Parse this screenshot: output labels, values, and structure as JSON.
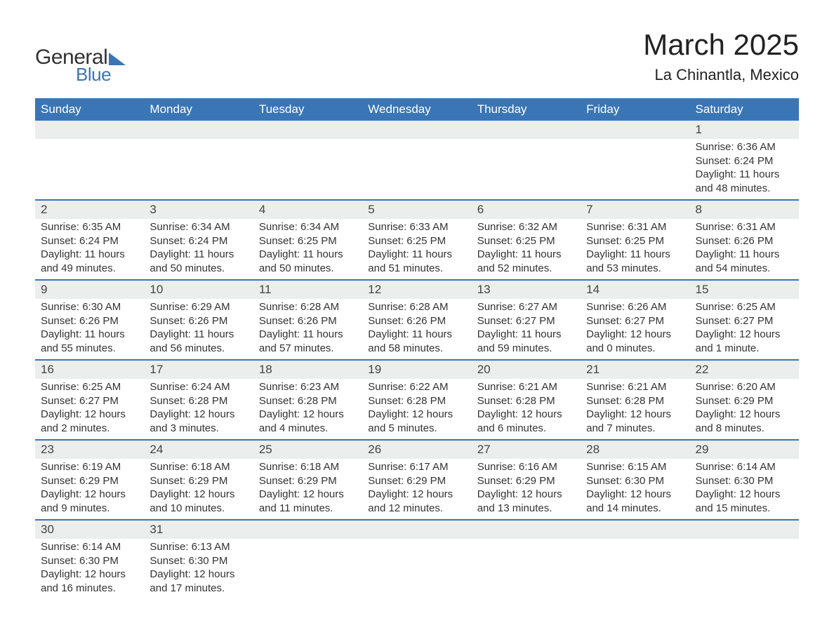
{
  "logo": {
    "text_general": "General",
    "text_blue": "Blue",
    "shape_color": "#3a76b5",
    "general_color": "#333333",
    "blue_color": "#3a76b5"
  },
  "title": "March 2025",
  "location": "La Chinantla, Mexico",
  "colors": {
    "header_bg": "#3a76b5",
    "header_text": "#ffffff",
    "daynum_bg": "#eceded",
    "text": "#333333",
    "border": "#3a76b5",
    "page_bg": "#ffffff"
  },
  "typography": {
    "title_fontsize": 42,
    "location_fontsize": 22,
    "header_fontsize": 17,
    "daynum_fontsize": 17,
    "content_fontsize": 15,
    "font_family": "Arial"
  },
  "day_headers": [
    "Sunday",
    "Monday",
    "Tuesday",
    "Wednesday",
    "Thursday",
    "Friday",
    "Saturday"
  ],
  "weeks": [
    [
      {
        "num": "",
        "sunrise": "",
        "sunset": "",
        "daylight": ""
      },
      {
        "num": "",
        "sunrise": "",
        "sunset": "",
        "daylight": ""
      },
      {
        "num": "",
        "sunrise": "",
        "sunset": "",
        "daylight": ""
      },
      {
        "num": "",
        "sunrise": "",
        "sunset": "",
        "daylight": ""
      },
      {
        "num": "",
        "sunrise": "",
        "sunset": "",
        "daylight": ""
      },
      {
        "num": "",
        "sunrise": "",
        "sunset": "",
        "daylight": ""
      },
      {
        "num": "1",
        "sunrise": "Sunrise: 6:36 AM",
        "sunset": "Sunset: 6:24 PM",
        "daylight": "Daylight: 11 hours and 48 minutes."
      }
    ],
    [
      {
        "num": "2",
        "sunrise": "Sunrise: 6:35 AM",
        "sunset": "Sunset: 6:24 PM",
        "daylight": "Daylight: 11 hours and 49 minutes."
      },
      {
        "num": "3",
        "sunrise": "Sunrise: 6:34 AM",
        "sunset": "Sunset: 6:24 PM",
        "daylight": "Daylight: 11 hours and 50 minutes."
      },
      {
        "num": "4",
        "sunrise": "Sunrise: 6:34 AM",
        "sunset": "Sunset: 6:25 PM",
        "daylight": "Daylight: 11 hours and 50 minutes."
      },
      {
        "num": "5",
        "sunrise": "Sunrise: 6:33 AM",
        "sunset": "Sunset: 6:25 PM",
        "daylight": "Daylight: 11 hours and 51 minutes."
      },
      {
        "num": "6",
        "sunrise": "Sunrise: 6:32 AM",
        "sunset": "Sunset: 6:25 PM",
        "daylight": "Daylight: 11 hours and 52 minutes."
      },
      {
        "num": "7",
        "sunrise": "Sunrise: 6:31 AM",
        "sunset": "Sunset: 6:25 PM",
        "daylight": "Daylight: 11 hours and 53 minutes."
      },
      {
        "num": "8",
        "sunrise": "Sunrise: 6:31 AM",
        "sunset": "Sunset: 6:26 PM",
        "daylight": "Daylight: 11 hours and 54 minutes."
      }
    ],
    [
      {
        "num": "9",
        "sunrise": "Sunrise: 6:30 AM",
        "sunset": "Sunset: 6:26 PM",
        "daylight": "Daylight: 11 hours and 55 minutes."
      },
      {
        "num": "10",
        "sunrise": "Sunrise: 6:29 AM",
        "sunset": "Sunset: 6:26 PM",
        "daylight": "Daylight: 11 hours and 56 minutes."
      },
      {
        "num": "11",
        "sunrise": "Sunrise: 6:28 AM",
        "sunset": "Sunset: 6:26 PM",
        "daylight": "Daylight: 11 hours and 57 minutes."
      },
      {
        "num": "12",
        "sunrise": "Sunrise: 6:28 AM",
        "sunset": "Sunset: 6:26 PM",
        "daylight": "Daylight: 11 hours and 58 minutes."
      },
      {
        "num": "13",
        "sunrise": "Sunrise: 6:27 AM",
        "sunset": "Sunset: 6:27 PM",
        "daylight": "Daylight: 11 hours and 59 minutes."
      },
      {
        "num": "14",
        "sunrise": "Sunrise: 6:26 AM",
        "sunset": "Sunset: 6:27 PM",
        "daylight": "Daylight: 12 hours and 0 minutes."
      },
      {
        "num": "15",
        "sunrise": "Sunrise: 6:25 AM",
        "sunset": "Sunset: 6:27 PM",
        "daylight": "Daylight: 12 hours and 1 minute."
      }
    ],
    [
      {
        "num": "16",
        "sunrise": "Sunrise: 6:25 AM",
        "sunset": "Sunset: 6:27 PM",
        "daylight": "Daylight: 12 hours and 2 minutes."
      },
      {
        "num": "17",
        "sunrise": "Sunrise: 6:24 AM",
        "sunset": "Sunset: 6:28 PM",
        "daylight": "Daylight: 12 hours and 3 minutes."
      },
      {
        "num": "18",
        "sunrise": "Sunrise: 6:23 AM",
        "sunset": "Sunset: 6:28 PM",
        "daylight": "Daylight: 12 hours and 4 minutes."
      },
      {
        "num": "19",
        "sunrise": "Sunrise: 6:22 AM",
        "sunset": "Sunset: 6:28 PM",
        "daylight": "Daylight: 12 hours and 5 minutes."
      },
      {
        "num": "20",
        "sunrise": "Sunrise: 6:21 AM",
        "sunset": "Sunset: 6:28 PM",
        "daylight": "Daylight: 12 hours and 6 minutes."
      },
      {
        "num": "21",
        "sunrise": "Sunrise: 6:21 AM",
        "sunset": "Sunset: 6:28 PM",
        "daylight": "Daylight: 12 hours and 7 minutes."
      },
      {
        "num": "22",
        "sunrise": "Sunrise: 6:20 AM",
        "sunset": "Sunset: 6:29 PM",
        "daylight": "Daylight: 12 hours and 8 minutes."
      }
    ],
    [
      {
        "num": "23",
        "sunrise": "Sunrise: 6:19 AM",
        "sunset": "Sunset: 6:29 PM",
        "daylight": "Daylight: 12 hours and 9 minutes."
      },
      {
        "num": "24",
        "sunrise": "Sunrise: 6:18 AM",
        "sunset": "Sunset: 6:29 PM",
        "daylight": "Daylight: 12 hours and 10 minutes."
      },
      {
        "num": "25",
        "sunrise": "Sunrise: 6:18 AM",
        "sunset": "Sunset: 6:29 PM",
        "daylight": "Daylight: 12 hours and 11 minutes."
      },
      {
        "num": "26",
        "sunrise": "Sunrise: 6:17 AM",
        "sunset": "Sunset: 6:29 PM",
        "daylight": "Daylight: 12 hours and 12 minutes."
      },
      {
        "num": "27",
        "sunrise": "Sunrise: 6:16 AM",
        "sunset": "Sunset: 6:29 PM",
        "daylight": "Daylight: 12 hours and 13 minutes."
      },
      {
        "num": "28",
        "sunrise": "Sunrise: 6:15 AM",
        "sunset": "Sunset: 6:30 PM",
        "daylight": "Daylight: 12 hours and 14 minutes."
      },
      {
        "num": "29",
        "sunrise": "Sunrise: 6:14 AM",
        "sunset": "Sunset: 6:30 PM",
        "daylight": "Daylight: 12 hours and 15 minutes."
      }
    ],
    [
      {
        "num": "30",
        "sunrise": "Sunrise: 6:14 AM",
        "sunset": "Sunset: 6:30 PM",
        "daylight": "Daylight: 12 hours and 16 minutes."
      },
      {
        "num": "31",
        "sunrise": "Sunrise: 6:13 AM",
        "sunset": "Sunset: 6:30 PM",
        "daylight": "Daylight: 12 hours and 17 minutes."
      },
      {
        "num": "",
        "sunrise": "",
        "sunset": "",
        "daylight": ""
      },
      {
        "num": "",
        "sunrise": "",
        "sunset": "",
        "daylight": ""
      },
      {
        "num": "",
        "sunrise": "",
        "sunset": "",
        "daylight": ""
      },
      {
        "num": "",
        "sunrise": "",
        "sunset": "",
        "daylight": ""
      },
      {
        "num": "",
        "sunrise": "",
        "sunset": "",
        "daylight": ""
      }
    ]
  ]
}
